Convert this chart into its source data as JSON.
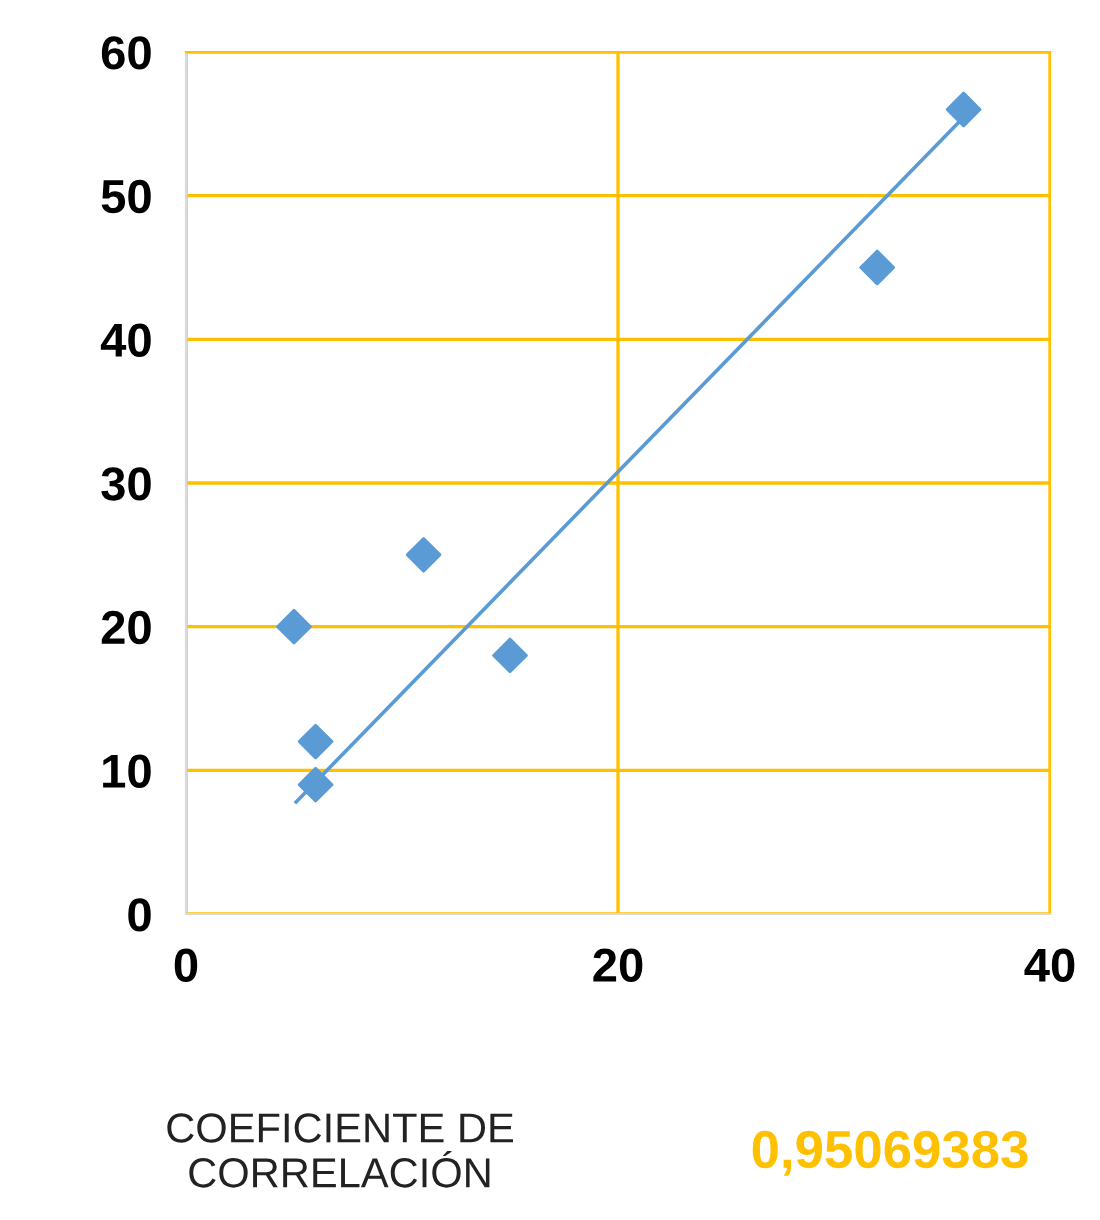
{
  "chart_data": {
    "type": "scatter",
    "xlim": [
      0,
      40
    ],
    "xticks": [
      0,
      20,
      40
    ],
    "ylim": [
      0,
      60
    ],
    "yticks": [
      0,
      10,
      20,
      30,
      40,
      50,
      60
    ],
    "grid": true,
    "series": [
      {
        "color": "#5b9bd5",
        "marker": "diamond",
        "x": [
          5,
          6,
          6,
          11,
          15,
          32,
          36
        ],
        "values": [
          20,
          12,
          9,
          25,
          18,
          45,
          56
        ]
      },
      {
        "type": "line",
        "color": "#5b9bd5",
        "marker": "none",
        "x": [
          5.1,
          35.9
        ],
        "values": [
          7.8,
          55.3
        ],
        "line_style": "solid"
      }
    ],
    "annotations": [
      "COEFICIENTE DE\nCORRELACIÓN",
      "0,95069383"
    ]
  }
}
